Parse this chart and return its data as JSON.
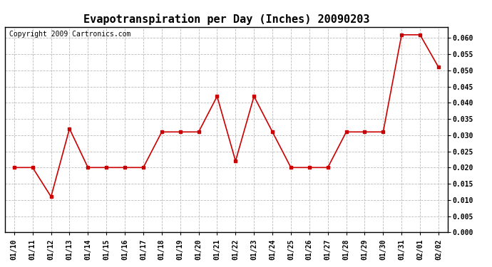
{
  "title": "Evapotranspiration per Day (Inches) 20090203",
  "copyright": "Copyright 2009 Cartronics.com",
  "x_labels": [
    "01/10",
    "01/11",
    "01/12",
    "01/13",
    "01/14",
    "01/15",
    "01/16",
    "01/17",
    "01/18",
    "01/19",
    "01/20",
    "01/21",
    "01/22",
    "01/23",
    "01/24",
    "01/25",
    "01/26",
    "01/27",
    "01/28",
    "01/29",
    "01/30",
    "01/31",
    "02/01",
    "02/02"
  ],
  "y_values": [
    0.02,
    0.02,
    0.011,
    0.032,
    0.02,
    0.02,
    0.02,
    0.02,
    0.031,
    0.031,
    0.031,
    0.042,
    0.022,
    0.042,
    0.031,
    0.02,
    0.02,
    0.02,
    0.031,
    0.031,
    0.031,
    0.061,
    0.061,
    0.051
  ],
  "line_color": "#cc0000",
  "marker": "s",
  "marker_size": 3,
  "ylim": [
    0.0,
    0.0635
  ],
  "ytick_min": 0.0,
  "ytick_max": 0.06,
  "ytick_step": 0.005,
  "bg_color": "#ffffff",
  "grid_color": "#bbbbbb",
  "title_fontsize": 11,
  "copyright_fontsize": 7,
  "tick_fontsize": 7
}
